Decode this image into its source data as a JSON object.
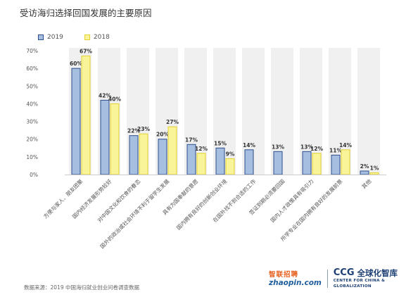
{
  "title": "受访海归选择回国发展的主要原因",
  "source": "数据来源：2019 中国海归就业创业问卷调查数据",
  "logos": {
    "zhaopin_cn": "智联招聘",
    "zhaopin_en": "zhaopin.com",
    "ccg_abbr": "CCG",
    "ccg_cn": "全球化智库",
    "ccg_en": "CENTER FOR CHINA & GLOBALIZATION"
  },
  "colors": {
    "s2019_fill": "#a6bfe0",
    "s2019_stroke": "#2f4d8c",
    "s2018_fill": "#f9f39a",
    "s2018_stroke": "#e4d230",
    "band": "#f0f0f0",
    "axis_text": "#555555"
  },
  "chart_data": {
    "type": "bar",
    "title": "受访海归选择回国发展的主要原因",
    "categories": [
      "方便与家人、朋友团聚",
      "国内经济发展形势较好",
      "对中国文化和饮食的眷恋",
      "国外的政治或社会环境不利于留学生发展",
      "具有为国奉献的意愿",
      "国内拥有良好的创新创业环境",
      "在国外找不到合适的工作",
      "签证到期必须要回国",
      "国内人才政策具有吸引力",
      "所学专业在国内拥有良好的发展前景",
      "其他"
    ],
    "series": [
      {
        "name": "2019",
        "values": [
          60,
          42,
          22,
          20,
          17,
          15,
          14,
          13,
          13,
          11,
          2
        ],
        "labels": [
          "60%",
          "42%",
          "22%",
          "20%",
          "17%",
          "15%",
          "14%",
          "13%",
          "13%",
          "11%",
          "2%"
        ]
      },
      {
        "name": "2018",
        "values": [
          67,
          40,
          23,
          27,
          12,
          9,
          null,
          null,
          12,
          14,
          1
        ],
        "labels": [
          "67%",
          "40%",
          "23%",
          "27%",
          "12%",
          "9%",
          "",
          "",
          "12%",
          "14%",
          "1%"
        ]
      }
    ],
    "yticks": [
      "0%",
      "10%",
      "20%",
      "30%",
      "40%",
      "50%",
      "60%",
      "70%"
    ],
    "ylim": [
      0,
      70
    ],
    "xlabel": "",
    "ylabel": "",
    "legend_position": "top-left",
    "grid": false
  }
}
